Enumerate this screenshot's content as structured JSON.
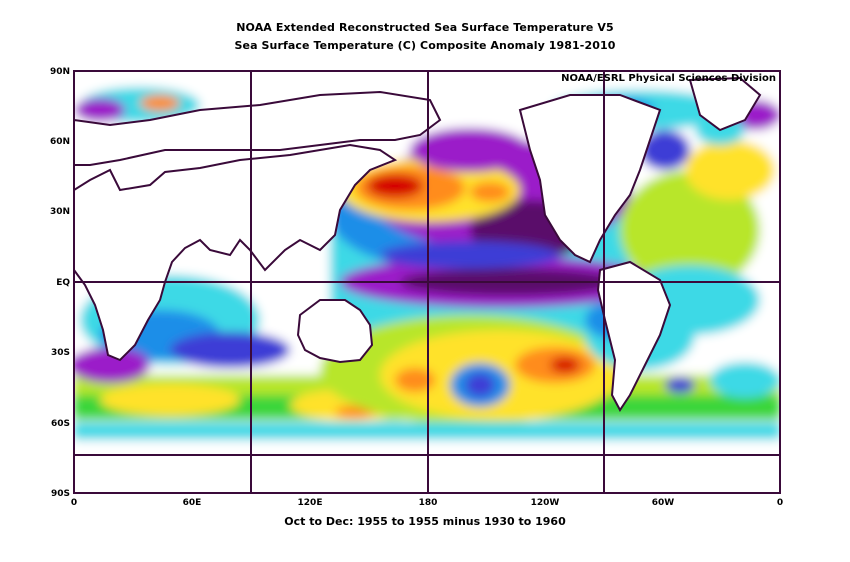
{
  "title_line1": "NOAA Extended Reconstructed Sea Surface Temperature V5",
  "title_line2": "Sea Surface Temperature (C) Composite Anomaly 1981-2010",
  "credit": "NOAA/ESRL Physical Sciences Division",
  "footer": "Oct to Dec: 1955 to 1955 minus 1930 to 1960",
  "lat_labels": [
    "90N",
    "60N",
    "30N",
    "EQ",
    "30S",
    "60S",
    "90S"
  ],
  "lon_labels": [
    "0",
    "60E",
    "120E",
    "180",
    "120W",
    "60W",
    "0"
  ],
  "colors": {
    "frame": "#3a0a3a",
    "strong_warm": "#d60000",
    "warm": "#ff8c1a",
    "mild_warm": "#ffe22a",
    "slight_warm": "#b8e62c",
    "near_zero_warm": "#3ad63a",
    "near_zero_cool": "#3cd9e6",
    "cool": "#1e8ee8",
    "cooler": "#3c3cd6",
    "cold": "#9b1cc9",
    "very_cold": "#5a0a6a",
    "land": "#ffffff"
  }
}
